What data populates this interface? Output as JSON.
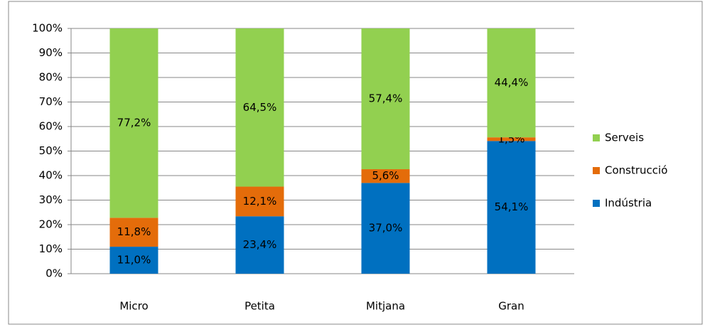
{
  "chart_data": {
    "type": "stacked_bar",
    "categories": [
      "Micro",
      "Petita",
      "Mitjana",
      "Gran"
    ],
    "series": [
      {
        "name": "Indústria",
        "color": "#0070c0",
        "values": [
          11.0,
          23.4,
          37.0,
          54.1
        ],
        "value_labels": [
          "11,0%",
          "23,4%",
          "37,0%",
          "54,1%"
        ]
      },
      {
        "name": "Construcció",
        "color": "#e46c0a",
        "values": [
          11.8,
          12.1,
          5.6,
          1.5
        ],
        "value_labels": [
          "11,8%",
          "12,1%",
          "5,6%",
          "1,5%"
        ]
      },
      {
        "name": "Serveis",
        "color": "#92d050",
        "values": [
          77.2,
          64.5,
          57.4,
          44.4
        ],
        "value_labels": [
          "77,2%",
          "64,5%",
          "57,4%",
          "44,4%"
        ]
      }
    ],
    "ylim": [
      0,
      100
    ],
    "yticks": [
      {
        "value": 0,
        "label": "0%"
      },
      {
        "value": 10,
        "label": "10%"
      },
      {
        "value": 20,
        "label": "20%"
      },
      {
        "value": 30,
        "label": "30%"
      },
      {
        "value": 40,
        "label": "40%"
      },
      {
        "value": 50,
        "label": "50%"
      },
      {
        "value": 60,
        "label": "60%"
      },
      {
        "value": 70,
        "label": "70%"
      },
      {
        "value": 80,
        "label": "80%"
      },
      {
        "value": 90,
        "label": "90%"
      },
      {
        "value": 100,
        "label": "100%"
      }
    ],
    "grid": true,
    "legend": "right"
  }
}
